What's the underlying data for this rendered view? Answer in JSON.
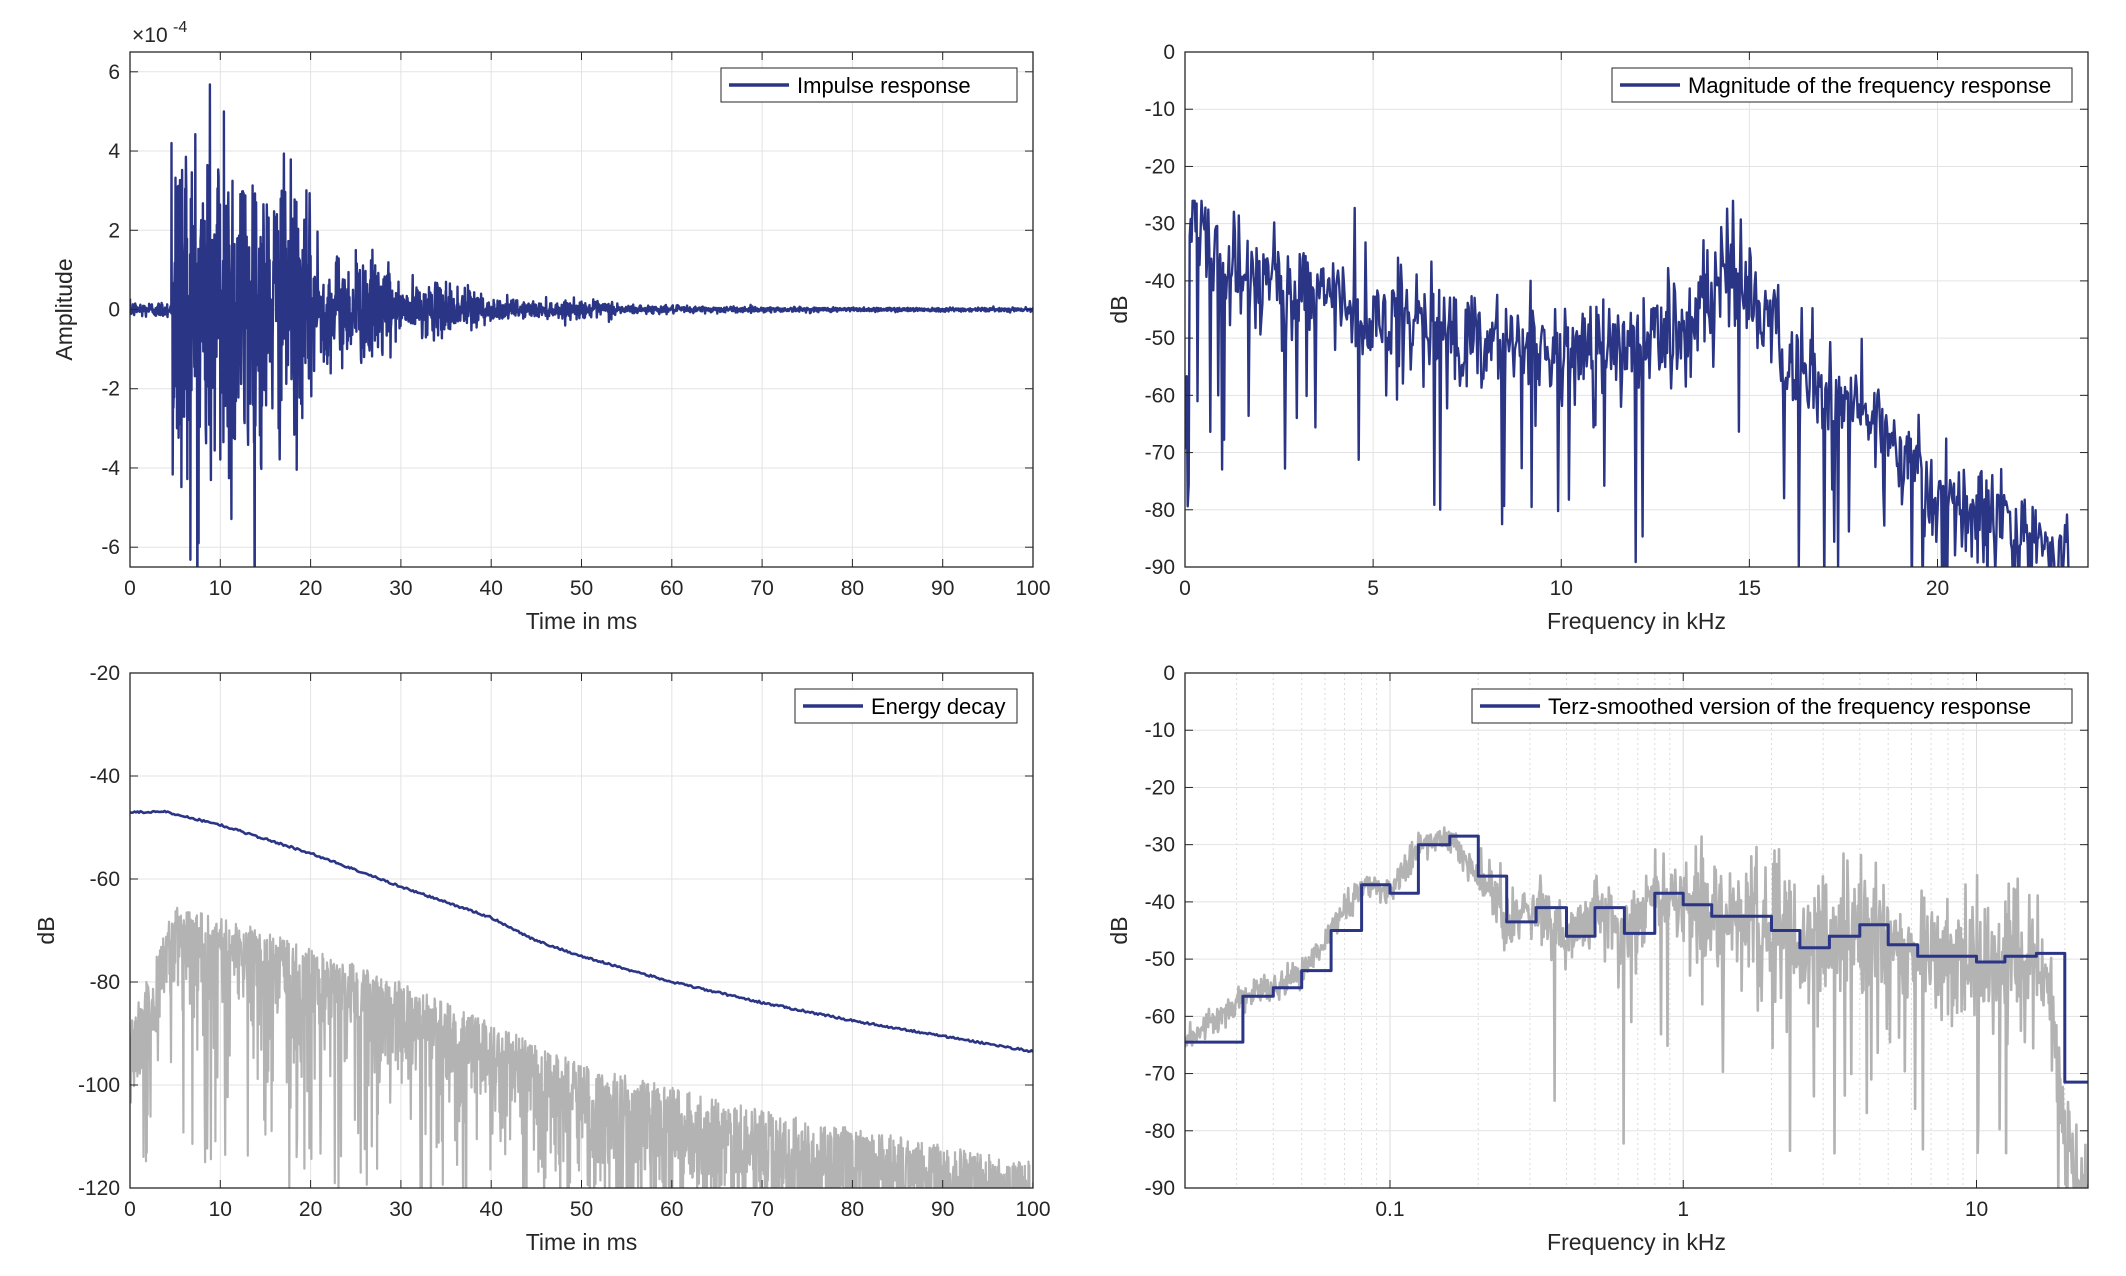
{
  "chart_data": [
    {
      "type": "line",
      "xlabel": "Time in ms",
      "ylabel": "Amplitude",
      "exponent_label": "×10",
      "exponent_power": "-4",
      "xlim": [
        0,
        100
      ],
      "ylim": [
        -6.5,
        6.5
      ],
      "xticks": [
        "0",
        "10",
        "20",
        "30",
        "40",
        "50",
        "60",
        "70",
        "80",
        "90",
        "100"
      ],
      "yticks": [
        "-6",
        "-4",
        "-2",
        "0",
        "2",
        "4",
        "6"
      ],
      "grid": true,
      "legend_position": "top-right",
      "series": [
        {
          "name": "Impulse response",
          "color": "#2b3585",
          "shape": "decaying noisy impulse response (values in units of 1e-4)",
          "direct_sound_ms": 4.6,
          "key_points": [
            {
              "x": 4.6,
              "y": 4.2
            },
            {
              "x": 5.2,
              "y": -3.0
            },
            {
              "x": 7.6,
              "y": -5.9
            },
            {
              "x": 10.4,
              "y": 5.0
            },
            {
              "x": 14.5,
              "y": -3.9
            },
            {
              "x": 16.8,
              "y": 3.0
            },
            {
              "x": 25,
              "y": 1.5
            },
            {
              "x": 35,
              "y": 0.7
            },
            {
              "x": 50,
              "y": 0.2
            },
            {
              "x": 100,
              "y": 0.0
            }
          ]
        }
      ]
    },
    {
      "type": "line",
      "xlabel": "Frequency in kHz",
      "ylabel": "dB",
      "xlim": [
        0,
        24
      ],
      "ylim": [
        -90,
        0
      ],
      "xticks": [
        "0",
        "5",
        "10",
        "15",
        "20"
      ],
      "yticks": [
        "0",
        "-10",
        "-20",
        "-30",
        "-40",
        "-50",
        "-60",
        "-70",
        "-80",
        "-90"
      ],
      "grid": true,
      "legend_position": "top-right",
      "series": [
        {
          "name": "Magnitude of the frequency response",
          "color": "#2b3585",
          "shape": "noisy magnitude spectrum, approx envelope",
          "envelope": [
            {
              "x": 0.0,
              "y": -75
            },
            {
              "x": 0.15,
              "y": -28
            },
            {
              "x": 1.0,
              "y": -38
            },
            {
              "x": 3.5,
              "y": -42
            },
            {
              "x": 6,
              "y": -48
            },
            {
              "x": 10,
              "y": -52
            },
            {
              "x": 13,
              "y": -50
            },
            {
              "x": 14.6,
              "y": -37
            },
            {
              "x": 16,
              "y": -55
            },
            {
              "x": 18,
              "y": -63
            },
            {
              "x": 20,
              "y": -78
            },
            {
              "x": 23.5,
              "y": -88
            }
          ]
        }
      ]
    },
    {
      "type": "line",
      "xlabel": "Time in ms",
      "ylabel": "dB",
      "xlim": [
        0,
        100
      ],
      "ylim": [
        -120,
        -20
      ],
      "xticks": [
        "0",
        "10",
        "20",
        "30",
        "40",
        "50",
        "60",
        "70",
        "80",
        "90",
        "100"
      ],
      "yticks": [
        "-20",
        "-40",
        "-60",
        "-80",
        "-100",
        "-120"
      ],
      "grid": true,
      "legend_position": "top-right",
      "series": [
        {
          "name": "Energy decay",
          "color": "#2b3585",
          "points": [
            {
              "x": 0,
              "y": -47
            },
            {
              "x": 4,
              "y": -47
            },
            {
              "x": 10,
              "y": -49.5
            },
            {
              "x": 20,
              "y": -55
            },
            {
              "x": 30,
              "y": -61.5
            },
            {
              "x": 40,
              "y": -67.5
            },
            {
              "x": 45,
              "y": -72
            },
            {
              "x": 50,
              "y": -75
            },
            {
              "x": 60,
              "y": -80
            },
            {
              "x": 70,
              "y": -84
            },
            {
              "x": 80,
              "y": -87.5
            },
            {
              "x": 90,
              "y": -90.5
            },
            {
              "x": 100,
              "y": -93.5
            }
          ]
        },
        {
          "color": "#b3b3b3",
          "shape": "squared impulse response in dB (noisy, gray)",
          "upper_envelope": [
            {
              "x": 0,
              "y": -88
            },
            {
              "x": 5,
              "y": -65
            },
            {
              "x": 15,
              "y": -70
            },
            {
              "x": 30,
              "y": -80
            },
            {
              "x": 50,
              "y": -96
            },
            {
              "x": 70,
              "y": -105
            },
            {
              "x": 100,
              "y": -115
            }
          ]
        }
      ]
    },
    {
      "type": "line",
      "xlabel": "Frequency in kHz",
      "ylabel": "dB",
      "xscale": "log",
      "xlim": [
        0.02,
        24
      ],
      "ylim": [
        -90,
        0
      ],
      "xticks": [
        "0.1",
        "1",
        "10"
      ],
      "yticks": [
        "0",
        "-10",
        "-20",
        "-30",
        "-40",
        "-50",
        "-60",
        "-70",
        "-80",
        "-90"
      ],
      "grid": true,
      "legend_position": "top-right",
      "series": [
        {
          "name": "Terz-smoothed version of the frequency response",
          "color": "#2b3585",
          "steps": [
            {
              "f": 0.02,
              "y": -64.5
            },
            {
              "f": 0.0315,
              "y": -56.5
            },
            {
              "f": 0.04,
              "y": -55
            },
            {
              "f": 0.05,
              "y": -52
            },
            {
              "f": 0.063,
              "y": -45
            },
            {
              "f": 0.08,
              "y": -37
            },
            {
              "f": 0.1,
              "y": -38.5
            },
            {
              "f": 0.125,
              "y": -30
            },
            {
              "f": 0.16,
              "y": -28.5
            },
            {
              "f": 0.2,
              "y": -35.5
            },
            {
              "f": 0.25,
              "y": -43.5
            },
            {
              "f": 0.315,
              "y": -41
            },
            {
              "f": 0.4,
              "y": -46
            },
            {
              "f": 0.5,
              "y": -41
            },
            {
              "f": 0.63,
              "y": -45.5
            },
            {
              "f": 0.8,
              "y": -38.5
            },
            {
              "f": 1.0,
              "y": -40.5
            },
            {
              "f": 1.25,
              "y": -42.5
            },
            {
              "f": 1.6,
              "y": -42.5
            },
            {
              "f": 2.0,
              "y": -45
            },
            {
              "f": 2.5,
              "y": -48
            },
            {
              "f": 3.15,
              "y": -46
            },
            {
              "f": 4.0,
              "y": -44
            },
            {
              "f": 5.0,
              "y": -47.5
            },
            {
              "f": 6.3,
              "y": -49.5
            },
            {
              "f": 8.0,
              "y": -49.5
            },
            {
              "f": 10.0,
              "y": -50.5
            },
            {
              "f": 12.5,
              "y": -49.5
            },
            {
              "f": 16.0,
              "y": -49
            },
            {
              "f": 20.0,
              "y": -71.5
            },
            {
              "f": 24.0,
              "y": -71.5
            }
          ]
        },
        {
          "color": "#b3b3b3",
          "shape": "unsmoothed frequency response (gray)"
        }
      ]
    }
  ]
}
